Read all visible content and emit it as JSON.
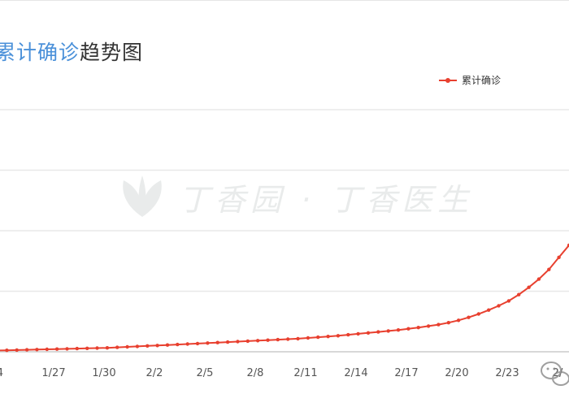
{
  "title": {
    "highlight": "累计确诊",
    "rest": "趋势图"
  },
  "legend": {
    "label": "累计确诊",
    "color": "#e8402f"
  },
  "watermark": {
    "text": "丁香园 · 丁香医生"
  },
  "chart_data": {
    "type": "line",
    "title": "累计确诊趋势图",
    "xlabel": "",
    "ylabel": "",
    "grid": true,
    "legend_placement": "top-right",
    "color": "#e8402f",
    "tick_labels": [
      "4",
      "1/27",
      "1/30",
      "2/2",
      "2/5",
      "2/8",
      "2/11",
      "2/14",
      "2/17",
      "2/20",
      "2/23",
      "2/"
    ],
    "ylim": [
      0,
      100
    ],
    "series": [
      {
        "name": "累计确诊",
        "values": [
          0.5,
          0.6,
          0.7,
          0.8,
          0.9,
          1.0,
          1.1,
          1.2,
          1.3,
          1.4,
          1.5,
          1.6,
          1.8,
          2.0,
          2.2,
          2.4,
          2.6,
          2.8,
          3.0,
          3.2,
          3.4,
          3.6,
          3.8,
          4.0,
          4.2,
          4.4,
          4.6,
          4.8,
          5.0,
          5.2,
          5.4,
          5.7,
          6.0,
          6.3,
          6.6,
          7.0,
          7.4,
          7.8,
          8.2,
          8.6,
          9.0,
          9.5,
          10.0,
          10.6,
          11.2,
          12.0,
          13.0,
          14.2,
          15.6,
          17.2,
          19.0,
          21.0,
          23.6,
          26.6,
          30.0,
          34.0,
          39.0,
          44.0
        ]
      }
    ]
  }
}
